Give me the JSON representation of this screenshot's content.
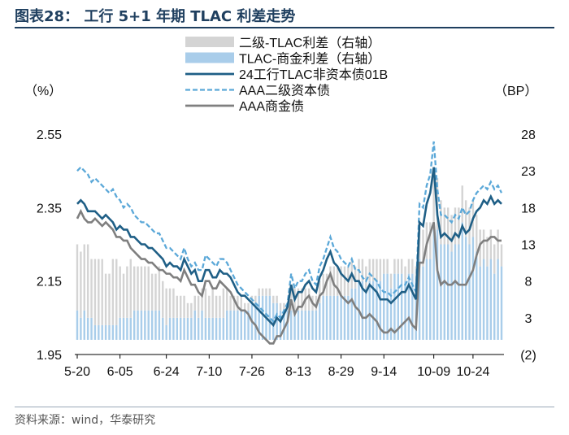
{
  "figure": {
    "title": "图表28：  工行 5+1 年期 TLAC 利差走势",
    "source": "资料来源：wind，华泰研究"
  },
  "colors": {
    "dark_blue": "#1f5f86",
    "light_blue": "#5ba8d8",
    "gray_line": "#7f7f7f",
    "light_gray_bar": "#d4d4d4",
    "blue_bar": "#a9cdea",
    "title_color": "#1f3f5f"
  },
  "chart_data": {
    "type": "line",
    "left_axis": {
      "label": "（%）",
      "min": 1.95,
      "max": 2.55,
      "ticks": [
        1.95,
        2.15,
        2.35,
        2.55
      ],
      "tick_labels": [
        "1.95",
        "2.15",
        "2.35",
        "2.55"
      ]
    },
    "right_axis": {
      "label": "（BP）",
      "min": -2,
      "max": 28,
      "ticks": [
        -2,
        3,
        8,
        13,
        18,
        23,
        28
      ],
      "tick_labels": [
        "(2)",
        "3",
        "8",
        "13",
        "18",
        "23",
        "28"
      ]
    },
    "x_tick_labels": [
      "5-20",
      "6-05",
      "6-24",
      "7-10",
      "7-26",
      "8-13",
      "8-29",
      "9-14",
      "10-09",
      "10-24"
    ],
    "x_tick_index": [
      0,
      12,
      25,
      37,
      49,
      62,
      74,
      86,
      100,
      111
    ],
    "legend": [
      {
        "name": "二级-TLAC利差（右轴）",
        "kind": "bar",
        "color": "#d4d4d4"
      },
      {
        "name": "TLAC-商金利差（右轴）",
        "kind": "bar",
        "color": "#a9cdea"
      },
      {
        "name": "24工行TLAC非资本债01B",
        "kind": "line",
        "color": "#1f5f86"
      },
      {
        "name": "AAA二级资本债",
        "kind": "dashed",
        "color": "#5ba8d8"
      },
      {
        "name": "AAA商金债",
        "kind": "line",
        "color": "#7f7f7f"
      }
    ],
    "series": [
      {
        "name": "24工行TLAC非资本债01B",
        "axis": "left",
        "values": [
          2.36,
          2.37,
          2.36,
          2.34,
          2.34,
          2.34,
          2.33,
          2.32,
          2.33,
          2.32,
          2.31,
          2.29,
          2.3,
          2.29,
          2.29,
          2.27,
          2.27,
          2.26,
          2.25,
          2.25,
          2.24,
          2.24,
          2.23,
          2.22,
          2.21,
          2.19,
          2.2,
          2.19,
          2.19,
          2.18,
          2.21,
          2.19,
          2.17,
          2.18,
          2.15,
          2.15,
          2.18,
          2.18,
          2.16,
          2.16,
          2.18,
          2.17,
          2.17,
          2.16,
          2.14,
          2.12,
          2.11,
          2.11,
          2.1,
          2.09,
          2.08,
          2.07,
          2.06,
          2.05,
          2.04,
          2.03,
          2.05,
          2.04,
          2.06,
          2.08,
          2.14,
          2.1,
          2.12,
          2.12,
          2.14,
          2.15,
          2.13,
          2.12,
          2.16,
          2.18,
          2.21,
          2.23,
          2.2,
          2.19,
          2.17,
          2.16,
          2.15,
          2.17,
          2.15,
          2.15,
          2.13,
          2.12,
          2.14,
          2.13,
          2.12,
          2.1,
          2.1,
          2.1,
          2.09,
          2.1,
          2.11,
          2.12,
          2.12,
          2.14,
          2.12,
          2.1,
          2.31,
          2.3,
          2.36,
          2.39,
          2.46,
          2.33,
          2.27,
          2.28,
          2.27,
          2.26,
          2.28,
          2.27,
          2.3,
          2.28,
          2.29,
          2.32,
          2.34,
          2.35,
          2.37,
          2.36,
          2.38,
          2.36,
          2.37,
          2.36
        ]
      },
      {
        "name": "AAA二级资本债",
        "axis": "left",
        "values": [
          2.45,
          2.46,
          2.45,
          2.44,
          2.42,
          2.43,
          2.42,
          2.41,
          2.4,
          2.39,
          2.4,
          2.38,
          2.37,
          2.35,
          2.36,
          2.35,
          2.33,
          2.32,
          2.31,
          2.31,
          2.3,
          2.29,
          2.28,
          2.28,
          2.26,
          2.24,
          2.24,
          2.23,
          2.22,
          2.21,
          2.24,
          2.21,
          2.19,
          2.2,
          2.18,
          2.18,
          2.22,
          2.21,
          2.2,
          2.19,
          2.21,
          2.21,
          2.2,
          2.18,
          2.16,
          2.14,
          2.13,
          2.12,
          2.11,
          2.1,
          2.09,
          2.08,
          2.07,
          2.06,
          2.05,
          2.04,
          2.06,
          2.05,
          2.07,
          2.09,
          2.17,
          2.13,
          2.15,
          2.15,
          2.17,
          2.18,
          2.15,
          2.14,
          2.19,
          2.21,
          2.24,
          2.27,
          2.24,
          2.23,
          2.21,
          2.2,
          2.19,
          2.21,
          2.18,
          2.18,
          2.16,
          2.15,
          2.17,
          2.16,
          2.15,
          2.13,
          2.12,
          2.12,
          2.11,
          2.12,
          2.13,
          2.14,
          2.14,
          2.16,
          2.14,
          2.12,
          2.36,
          2.35,
          2.41,
          2.44,
          2.53,
          2.4,
          2.33,
          2.33,
          2.32,
          2.31,
          2.33,
          2.32,
          2.35,
          2.33,
          2.34,
          2.37,
          2.39,
          2.4,
          2.41,
          2.4,
          2.42,
          2.4,
          2.41,
          2.39
        ]
      },
      {
        "name": "AAA商金债",
        "axis": "left",
        "values": [
          2.32,
          2.34,
          2.32,
          2.31,
          2.31,
          2.32,
          2.31,
          2.3,
          2.31,
          2.3,
          2.29,
          2.27,
          2.27,
          2.26,
          2.26,
          2.24,
          2.23,
          2.22,
          2.21,
          2.21,
          2.2,
          2.2,
          2.19,
          2.18,
          2.18,
          2.17,
          2.17,
          2.16,
          2.16,
          2.15,
          2.18,
          2.16,
          2.14,
          2.14,
          2.12,
          2.11,
          2.15,
          2.15,
          2.13,
          2.13,
          2.15,
          2.14,
          2.13,
          2.12,
          2.1,
          2.08,
          2.07,
          2.07,
          2.06,
          2.04,
          2.03,
          2.01,
          2.0,
          1.99,
          1.98,
          1.98,
          2.0,
          2.0,
          2.02,
          2.04,
          2.1,
          2.06,
          2.08,
          2.08,
          2.1,
          2.11,
          2.09,
          2.08,
          2.11,
          2.12,
          2.15,
          2.17,
          2.14,
          2.13,
          2.11,
          2.1,
          2.09,
          2.1,
          2.08,
          2.07,
          2.05,
          2.05,
          2.06,
          2.05,
          2.04,
          2.02,
          2.01,
          2.01,
          2.02,
          2.01,
          2.02,
          2.03,
          2.04,
          2.05,
          2.03,
          2.02,
          2.2,
          2.2,
          2.25,
          2.28,
          2.31,
          2.18,
          2.14,
          2.15,
          2.14,
          2.14,
          2.15,
          2.14,
          2.14,
          2.14,
          2.16,
          2.18,
          2.22,
          2.25,
          2.26,
          2.26,
          2.27,
          2.27,
          2.26,
          2.26
        ]
      },
      {
        "name": "二级-TLAC利差（右轴）",
        "axis": "right",
        "values": [
          9,
          9,
          9,
          10,
          8,
          9,
          9,
          9,
          7,
          7,
          9,
          9,
          7,
          6,
          7,
          8,
          6,
          6,
          6,
          6,
          6,
          5,
          5,
          6,
          5,
          5,
          4,
          4,
          3,
          3,
          3,
          2,
          2,
          2,
          3,
          3,
          4,
          3,
          4,
          3,
          3,
          4,
          3,
          2,
          2,
          2,
          2,
          1,
          1,
          1,
          1,
          1,
          1,
          1,
          1,
          1,
          1,
          1,
          1,
          1,
          3,
          3,
          3,
          3,
          3,
          3,
          2,
          2,
          3,
          3,
          3,
          4,
          4,
          4,
          4,
          4,
          4,
          4,
          3,
          3,
          3,
          3,
          3,
          3,
          3,
          3,
          2,
          2,
          2,
          2,
          2,
          2,
          2,
          2,
          2,
          2,
          5,
          5,
          5,
          5,
          7,
          7,
          6,
          5,
          5,
          5,
          5,
          5,
          5,
          5,
          5,
          5,
          5,
          5,
          4,
          4,
          4,
          4,
          4,
          3
        ]
      },
      {
        "name": "TLAC-商金利差（右轴）",
        "axis": "right",
        "values": [
          4,
          3,
          4,
          3,
          3,
          2,
          2,
          2,
          2,
          2,
          2,
          2,
          3,
          3,
          3,
          3,
          4,
          4,
          4,
          4,
          4,
          4,
          4,
          4,
          3,
          2,
          3,
          3,
          3,
          3,
          3,
          3,
          3,
          4,
          3,
          4,
          3,
          3,
          3,
          3,
          3,
          3,
          4,
          4,
          4,
          4,
          4,
          4,
          4,
          5,
          5,
          6,
          6,
          6,
          6,
          5,
          5,
          4,
          4,
          4,
          4,
          4,
          4,
          4,
          4,
          4,
          4,
          4,
          5,
          6,
          6,
          6,
          6,
          6,
          6,
          6,
          6,
          7,
          7,
          8,
          8,
          7,
          8,
          8,
          8,
          8,
          9,
          9,
          7,
          9,
          9,
          9,
          8,
          9,
          9,
          8,
          11,
          10,
          11,
          11,
          15,
          15,
          13,
          13,
          13,
          12,
          13,
          13,
          16,
          14,
          13,
          14,
          12,
          10,
          11,
          10,
          11,
          9,
          11,
          10
        ]
      }
    ]
  }
}
